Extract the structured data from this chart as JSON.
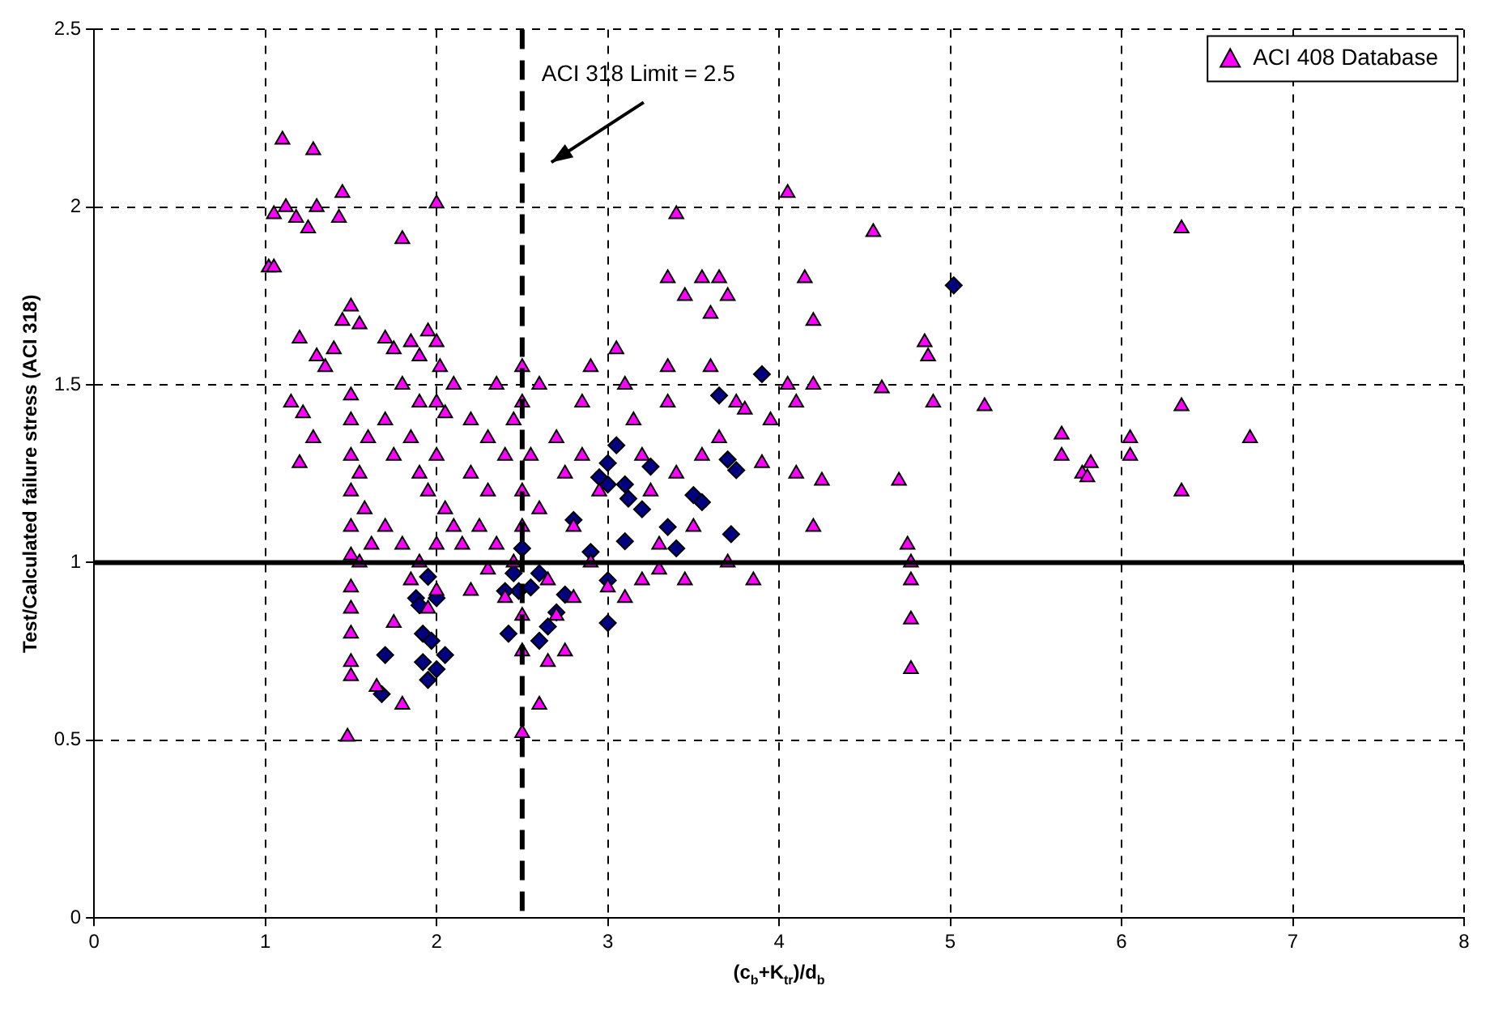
{
  "chart_data": {
    "type": "scatter",
    "xlabel": "(c$_{b}$+K$_{tr}$)/d$_{b}$",
    "ylabel": "Test/Calculated failure stress (ACI 318)",
    "xlim": [
      0,
      8
    ],
    "xticks": [
      0,
      1,
      2,
      3,
      4,
      5,
      6,
      7,
      8
    ],
    "ylim": [
      0,
      2.5
    ],
    "yticks": [
      0,
      0.5,
      1,
      1.5,
      2,
      2.5
    ],
    "grid": true,
    "legend": "top right",
    "ref_lines": [
      {
        "axis": "y",
        "value": 1,
        "color": "#000000",
        "line_style": "solid"
      },
      {
        "axis": "x",
        "value": 2.5,
        "label": "ACI 318 Limit = 2.5",
        "color": "#000000",
        "line_style": "dashed"
      }
    ],
    "series": [
      {
        "name": "ACI 408 Database",
        "color": "#ff00ff",
        "marker": "triangle",
        "x": [
          1.02,
          1.05,
          1.1,
          1.12,
          1.18,
          1.28,
          1.25,
          1.3,
          1.45,
          1.43,
          1.8,
          2.0,
          1.05,
          1.2,
          1.3,
          1.35,
          1.15,
          1.22,
          1.28,
          1.2,
          1.45,
          1.5,
          1.55,
          1.4,
          1.5,
          1.5,
          1.5,
          1.5,
          1.5,
          1.5,
          1.5,
          1.5,
          1.5,
          1.5,
          1.5,
          1.48,
          1.55,
          1.58,
          1.6,
          1.62,
          1.55,
          1.7,
          1.75,
          1.85,
          1.9,
          1.95,
          2.0,
          2.02,
          1.8,
          1.9,
          2.0,
          2.05,
          1.7,
          1.75,
          1.85,
          1.9,
          1.95,
          2.0,
          2.05,
          1.7,
          1.8,
          1.9,
          2.0,
          2.1,
          1.85,
          2.0,
          1.75,
          1.8,
          1.95,
          1.65,
          2.1,
          2.2,
          2.3,
          2.35,
          2.45,
          2.2,
          2.3,
          2.4,
          2.15,
          2.25,
          2.35,
          2.45,
          2.3,
          2.4,
          2.2,
          2.5,
          2.5,
          2.5,
          2.5,
          2.5,
          2.5,
          2.5,
          2.55,
          2.6,
          2.6,
          2.7,
          2.75,
          2.8,
          2.85,
          2.9,
          2.95,
          2.65,
          2.7,
          2.75,
          2.8,
          2.6,
          2.65,
          2.9,
          2.85,
          3.05,
          3.1,
          3.15,
          3.2,
          3.25,
          3.3,
          3.0,
          3.1,
          3.2,
          3.3,
          3.35,
          3.35,
          3.4,
          3.45,
          3.35,
          3.4,
          3.45,
          3.55,
          3.6,
          3.65,
          3.7,
          3.6,
          3.75,
          3.65,
          3.8,
          3.9,
          3.85,
          3.7,
          3.55,
          3.5,
          3.95,
          4.05,
          4.15,
          4.2,
          4.05,
          4.2,
          4.1,
          4.25,
          4.2,
          4.1,
          4.55,
          4.6,
          4.7,
          4.75,
          4.77,
          4.77,
          4.77,
          4.77,
          4.85,
          4.87,
          4.9,
          5.2,
          5.65,
          5.65,
          5.77,
          5.82,
          5.8,
          6.05,
          6.05,
          6.35,
          6.35,
          6.35,
          6.75
        ],
        "values": [
          1.83,
          1.98,
          2.19,
          2.0,
          1.97,
          2.16,
          1.94,
          2.0,
          2.04,
          1.97,
          1.91,
          2.01,
          1.83,
          1.63,
          1.58,
          1.55,
          1.45,
          1.42,
          1.35,
          1.28,
          1.68,
          1.72,
          1.67,
          1.6,
          1.47,
          1.4,
          1.3,
          1.2,
          1.1,
          1.02,
          0.93,
          0.87,
          0.8,
          0.72,
          0.68,
          0.51,
          1.25,
          1.15,
          1.35,
          1.05,
          1.0,
          1.63,
          1.6,
          1.62,
          1.58,
          1.65,
          1.62,
          1.55,
          1.5,
          1.45,
          1.45,
          1.42,
          1.4,
          1.3,
          1.35,
          1.25,
          1.2,
          1.3,
          1.15,
          1.1,
          1.05,
          1.0,
          1.05,
          1.1,
          0.95,
          0.92,
          0.83,
          0.6,
          0.87,
          0.65,
          1.5,
          1.4,
          1.35,
          1.5,
          1.4,
          1.25,
          1.2,
          1.3,
          1.05,
          1.1,
          1.05,
          1.0,
          0.98,
          0.9,
          0.92,
          1.55,
          1.45,
          1.2,
          1.1,
          0.85,
          0.75,
          0.52,
          1.3,
          1.15,
          1.5,
          1.35,
          1.25,
          1.1,
          1.45,
          1.0,
          1.2,
          0.95,
          0.85,
          0.75,
          0.9,
          0.6,
          0.72,
          1.55,
          1.3,
          1.6,
          1.5,
          1.4,
          1.3,
          1.2,
          1.05,
          0.93,
          0.9,
          0.95,
          0.98,
          1.45,
          1.8,
          1.98,
          1.75,
          1.55,
          1.25,
          0.95,
          1.8,
          1.7,
          1.8,
          1.75,
          1.55,
          1.45,
          1.35,
          1.43,
          1.28,
          0.95,
          1.0,
          1.3,
          1.1,
          1.4,
          2.04,
          1.8,
          1.68,
          1.5,
          1.5,
          1.25,
          1.23,
          1.1,
          1.45,
          1.93,
          1.49,
          1.23,
          1.05,
          1.0,
          0.95,
          0.84,
          0.7,
          1.62,
          1.58,
          1.45,
          1.44,
          1.36,
          1.3,
          1.25,
          1.28,
          1.24,
          1.35,
          1.3,
          1.94,
          1.44,
          1.2,
          1.35
        ]
      },
      {
        "color": "#000080",
        "marker": "diamond",
        "x": [
          1.7,
          1.68,
          1.88,
          1.9,
          1.92,
          1.95,
          2.0,
          1.92,
          1.95,
          2.0,
          1.97,
          2.05,
          2.45,
          2.5,
          2.48,
          2.55,
          2.4,
          2.42,
          2.6,
          2.65,
          2.7,
          2.75,
          2.6,
          2.8,
          3.0,
          2.9,
          3.0,
          2.95,
          3.0,
          3.05,
          3.1,
          3.12,
          3.1,
          3.2,
          3.25,
          3.35,
          3.4,
          3.5,
          3.55,
          3.7,
          3.75,
          3.72,
          3.65,
          3.9,
          5.02,
          3.0
        ],
        "values": [
          0.74,
          0.63,
          0.9,
          0.88,
          0.8,
          0.96,
          0.9,
          0.72,
          0.67,
          0.7,
          0.78,
          0.74,
          0.97,
          1.04,
          0.92,
          0.93,
          0.92,
          0.8,
          0.97,
          0.82,
          0.86,
          0.91,
          0.78,
          1.12,
          0.95,
          1.03,
          0.83,
          1.24,
          1.22,
          1.33,
          1.22,
          1.18,
          1.06,
          1.15,
          1.27,
          1.1,
          1.04,
          1.19,
          1.17,
          1.29,
          1.26,
          1.08,
          1.47,
          1.53,
          1.78,
          1.28
        ]
      }
    ]
  }
}
